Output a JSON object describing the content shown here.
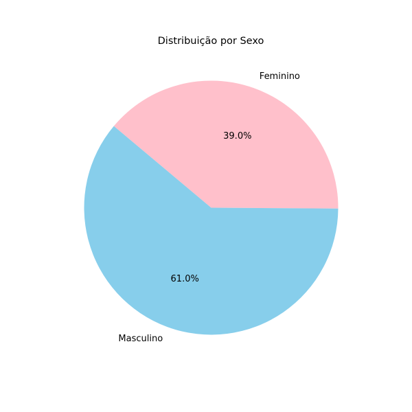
{
  "chart_data": {
    "type": "pie",
    "title": "Distribuição por Sexo",
    "slices": [
      {
        "label": "Feminino",
        "value": 39.0,
        "pct_label": "39.0%",
        "color": "#FFC0CB"
      },
      {
        "label": "Masculino",
        "value": 61.0,
        "pct_label": "61.0%",
        "color": "#87CEEB"
      }
    ],
    "start_angle_deg": 140,
    "direction": "clockwise",
    "legend": "none"
  }
}
